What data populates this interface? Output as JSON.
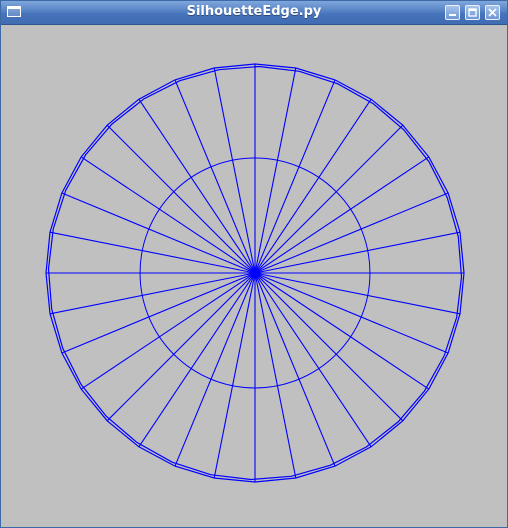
{
  "window": {
    "title": "SilhouetteEdge.py",
    "controls": [
      "minimize-icon",
      "maximize-icon",
      "close-icon"
    ]
  },
  "scene": {
    "background_color": "#c0c0c0",
    "edge_color": "#0000ff",
    "segments": 32,
    "inner_ring_ratio": 0.55
  }
}
